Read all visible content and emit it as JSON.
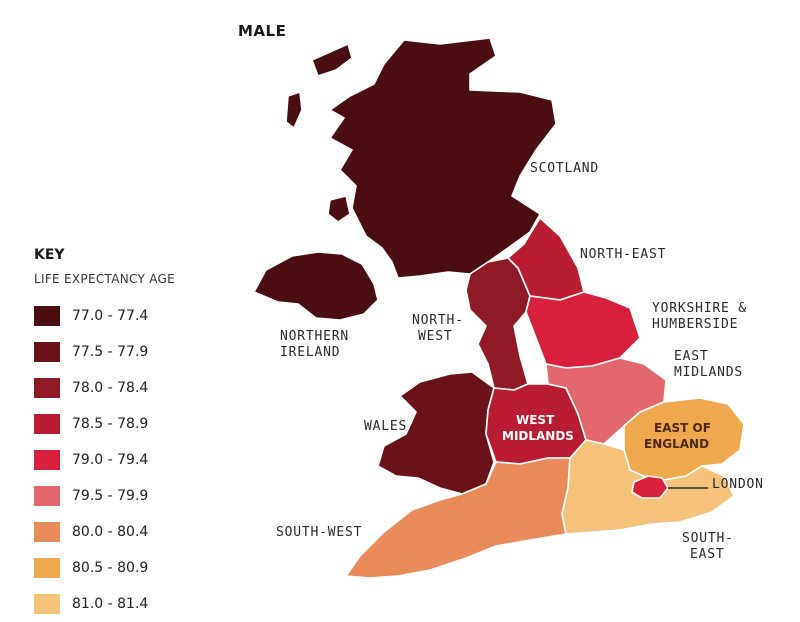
{
  "title": "MALE",
  "key": {
    "title": "KEY",
    "subtitle": "LIFE EXPECTANCY AGE",
    "items": [
      {
        "label": "77.0 - 77.4",
        "color": "#4a0d12"
      },
      {
        "label": "77.5 - 77.9",
        "color": "#6b1218"
      },
      {
        "label": "78.0 - 78.4",
        "color": "#8f1a24"
      },
      {
        "label": "78.5 - 78.9",
        "color": "#b81c2e"
      },
      {
        "label": "79.0 - 79.4",
        "color": "#d8203a"
      },
      {
        "label": "79.5 - 79.9",
        "color": "#e3676a"
      },
      {
        "label": "80.0 - 80.4",
        "color": "#e98a5a"
      },
      {
        "label": "80.5 - 80.9",
        "color": "#f0a84f"
      },
      {
        "label": "81.0 - 81.4",
        "color": "#f4c27a"
      }
    ]
  },
  "regions": {
    "scotland": {
      "label": "SCOTLAND",
      "color": "#4a0d12"
    },
    "northern_ireland": {
      "line1": "NORTHERN",
      "line2": "IRELAND",
      "color": "#4a0d12"
    },
    "north_east": {
      "label": "NORTH-EAST",
      "color": "#b81c2e"
    },
    "north_west": {
      "line1": "NORTH-",
      "line2": "WEST",
      "color": "#8f1a24"
    },
    "yorkshire": {
      "line1": "YORKSHIRE &",
      "line2": "HUMBERSIDE",
      "color": "#d8203a"
    },
    "east_midlands": {
      "line1": "EAST",
      "line2": "MIDLANDS",
      "color": "#e3676a"
    },
    "wales": {
      "label": "WALES",
      "color": "#6b1218"
    },
    "west_midlands": {
      "line1": "WEST",
      "line2": "MIDLANDS",
      "color": "#b81c2e"
    },
    "east_of_england": {
      "line1": "EAST OF",
      "line2": "ENGLAND",
      "color": "#f0a84f"
    },
    "london": {
      "label": "LONDON",
      "color": "#d8203a"
    },
    "south_west": {
      "label": "SOUTH-WEST",
      "color": "#e98a5a"
    },
    "south_east": {
      "line1": "SOUTH-",
      "line2": "EAST",
      "color": "#f4c27a"
    }
  }
}
